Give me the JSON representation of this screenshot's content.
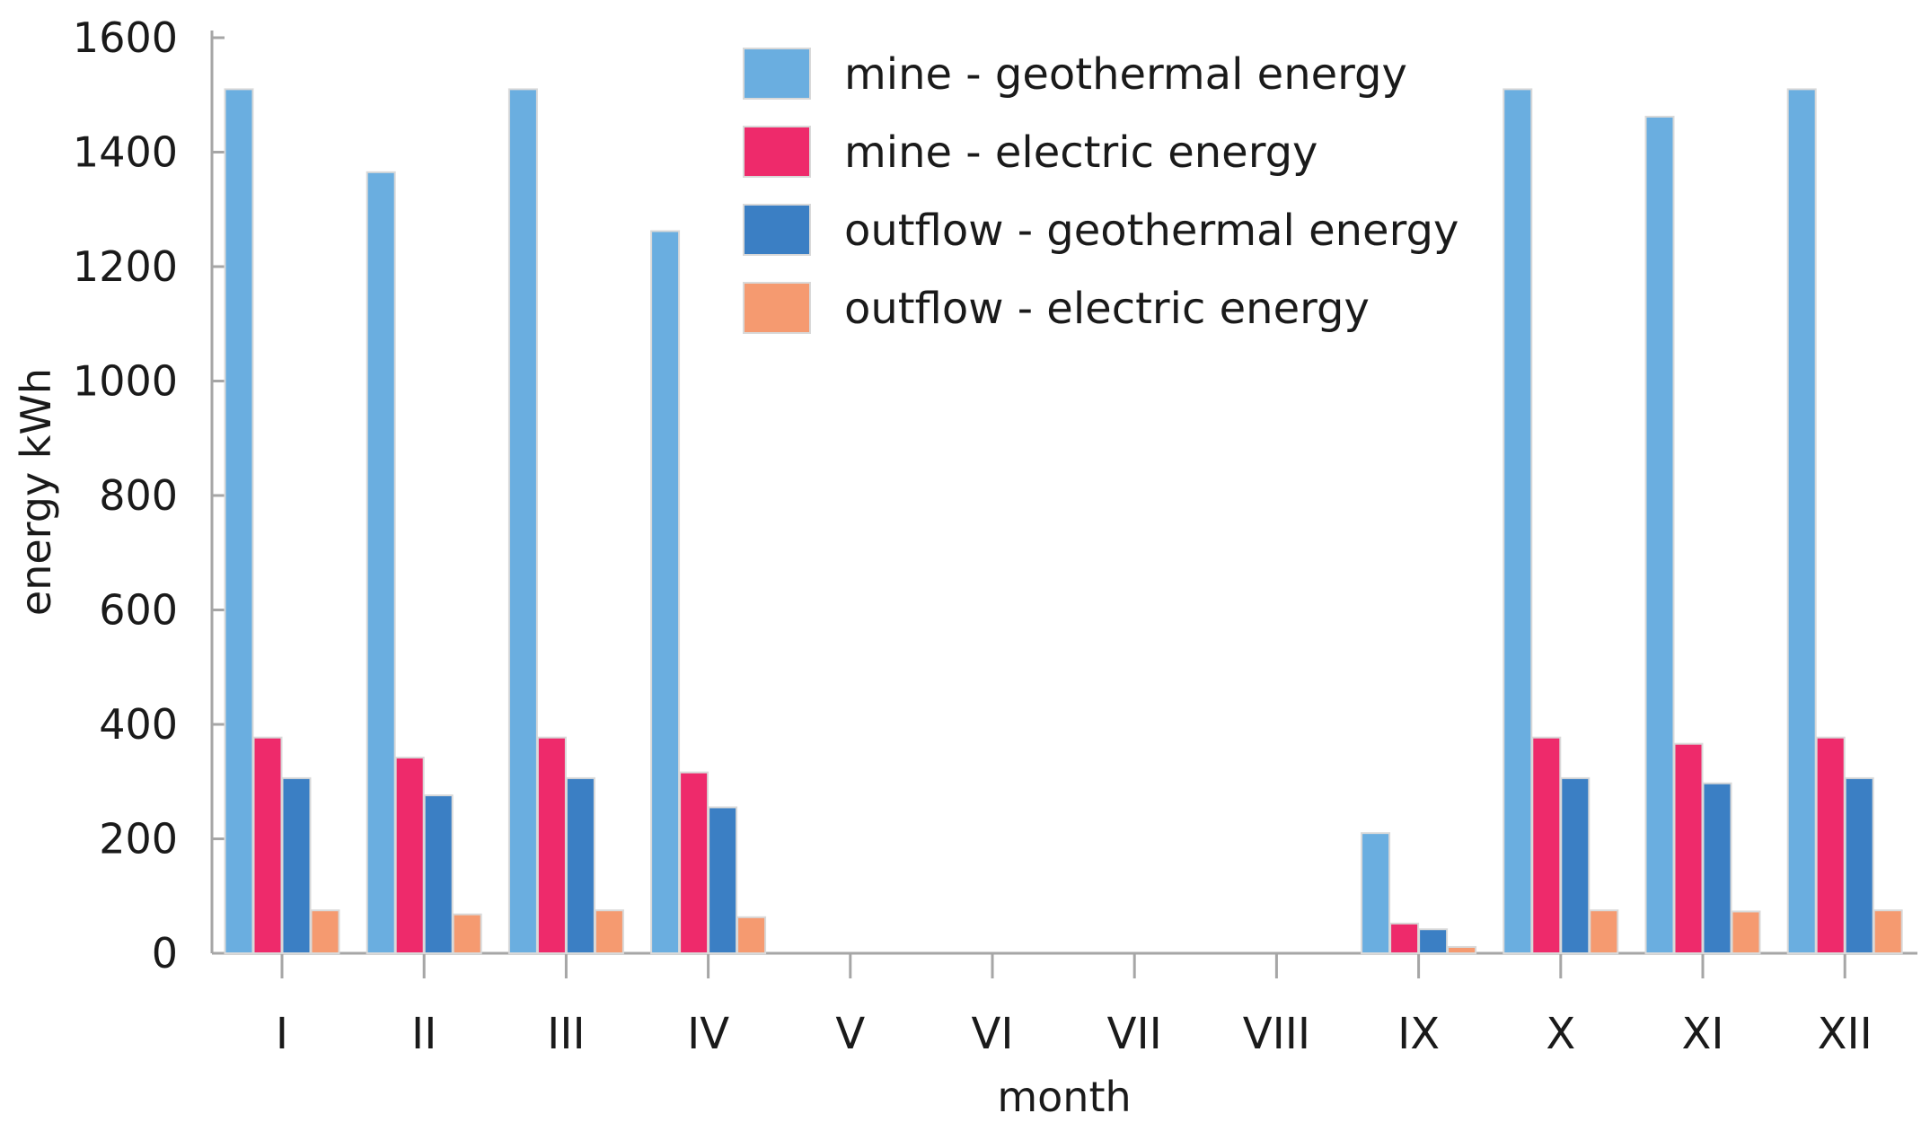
{
  "chart_data": {
    "type": "bar",
    "title": "",
    "xlabel": "month",
    "ylabel": "energy  kWh",
    "ylim": [
      0,
      1600
    ],
    "yticks": [
      0,
      200,
      400,
      600,
      800,
      1000,
      1200,
      1400,
      1600
    ],
    "ytick_labels": [
      "0",
      "200",
      "400",
      "600",
      "800",
      "1000",
      "1200",
      "1400",
      "1600"
    ],
    "categories": [
      "I",
      "II",
      "III",
      "IV",
      "V",
      "VI",
      "VII",
      "VIII",
      "IX",
      "X",
      "XI",
      "XII"
    ],
    "legend_position": "top-center",
    "series": [
      {
        "name": "mine - geothermal energy",
        "color": "#6aaee0",
        "values": [
          1510,
          1365,
          1510,
          1262,
          0,
          0,
          0,
          0,
          210,
          1510,
          1462,
          1510
        ]
      },
      {
        "name": "mine - electric energy",
        "color": "#ee2a6b",
        "values": [
          377,
          342,
          377,
          316,
          0,
          0,
          0,
          0,
          52,
          377,
          366,
          377
        ]
      },
      {
        "name": "outflow - geothermal energy",
        "color": "#3b7fc4",
        "values": [
          306,
          276,
          306,
          255,
          0,
          0,
          0,
          0,
          42,
          306,
          297,
          306
        ]
      },
      {
        "name": "outflow - electric energy",
        "color": "#f59a70",
        "values": [
          75,
          68,
          75,
          63,
          0,
          0,
          0,
          0,
          11,
          75,
          73,
          75
        ]
      }
    ]
  }
}
